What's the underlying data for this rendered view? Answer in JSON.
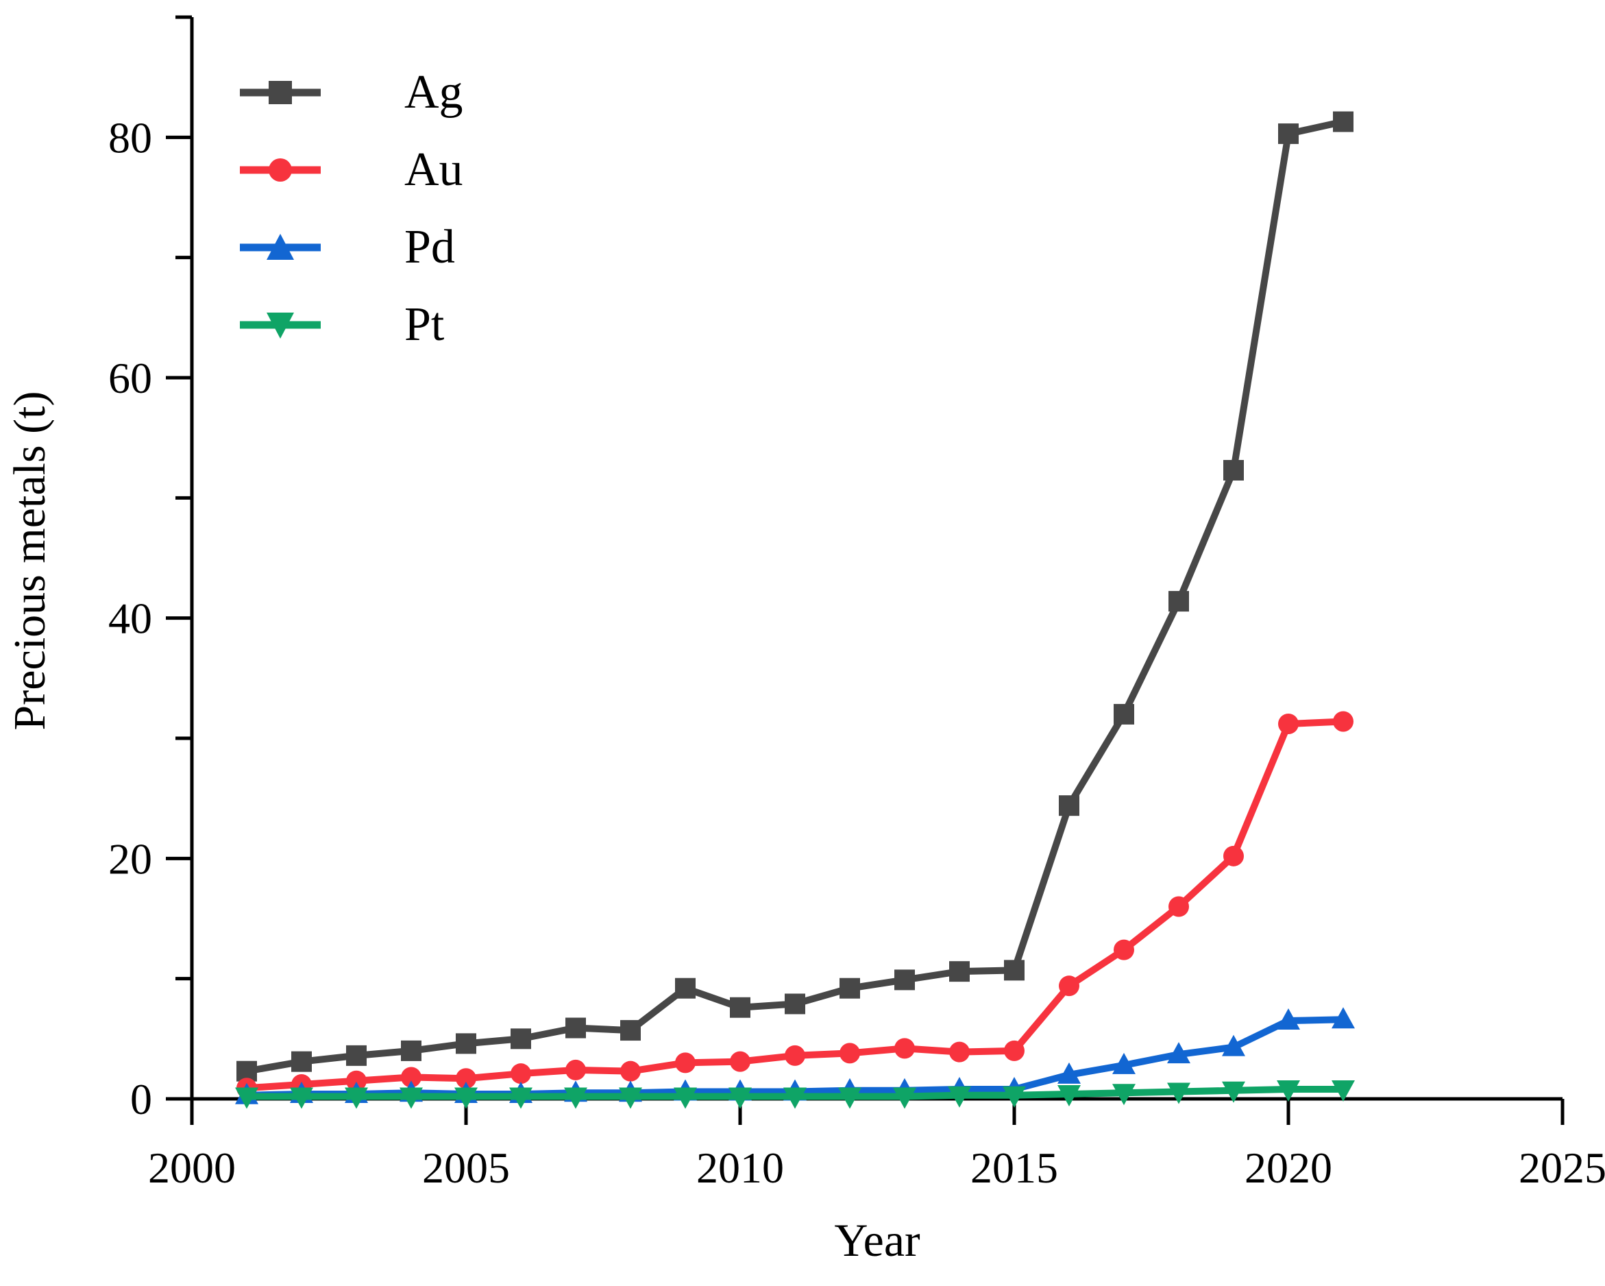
{
  "chart_data": {
    "type": "line",
    "title": "",
    "xlabel": "Year",
    "ylabel": "Precious metals (t)",
    "xlim": [
      2000,
      2025
    ],
    "ylim": [
      0,
      90
    ],
    "xticks": [
      2000,
      2005,
      2010,
      2015,
      2020,
      2025
    ],
    "yticks_major": [
      0,
      20,
      40,
      60,
      80
    ],
    "yticks_minor": [
      10,
      30,
      50,
      70,
      90
    ],
    "grid": false,
    "legend_position": "top-left",
    "x": [
      2001,
      2002,
      2003,
      2004,
      2005,
      2006,
      2007,
      2008,
      2009,
      2010,
      2011,
      2012,
      2013,
      2014,
      2015,
      2016,
      2017,
      2018,
      2019,
      2020,
      2021
    ],
    "series": [
      {
        "name": "Ag",
        "color": "#474747",
        "marker": "square",
        "values": [
          2.3,
          3.1,
          3.6,
          4.0,
          4.6,
          5.0,
          5.9,
          5.7,
          9.2,
          7.6,
          7.9,
          9.2,
          9.9,
          10.6,
          10.7,
          24.4,
          32.0,
          41.4,
          52.3,
          80.3,
          81.3
        ]
      },
      {
        "name": "Au",
        "color": "#F7333E",
        "marker": "circle",
        "values": [
          0.9,
          1.2,
          1.5,
          1.8,
          1.7,
          2.1,
          2.4,
          2.3,
          3.0,
          3.1,
          3.6,
          3.8,
          4.2,
          3.9,
          4.0,
          9.4,
          12.4,
          16.0,
          20.2,
          31.2,
          31.4
        ]
      },
      {
        "name": "Pd",
        "color": "#1266D2",
        "marker": "triangle-up",
        "values": [
          0.3,
          0.4,
          0.4,
          0.5,
          0.4,
          0.4,
          0.5,
          0.5,
          0.6,
          0.6,
          0.6,
          0.7,
          0.7,
          0.8,
          0.8,
          2.0,
          2.8,
          3.7,
          4.3,
          6.5,
          6.6
        ]
      },
      {
        "name": "Pt",
        "color": "#0FA466",
        "marker": "triangle-down",
        "values": [
          0.2,
          0.2,
          0.2,
          0.2,
          0.2,
          0.2,
          0.2,
          0.2,
          0.2,
          0.2,
          0.2,
          0.2,
          0.2,
          0.3,
          0.3,
          0.4,
          0.5,
          0.6,
          0.7,
          0.8,
          0.8
        ]
      }
    ]
  }
}
